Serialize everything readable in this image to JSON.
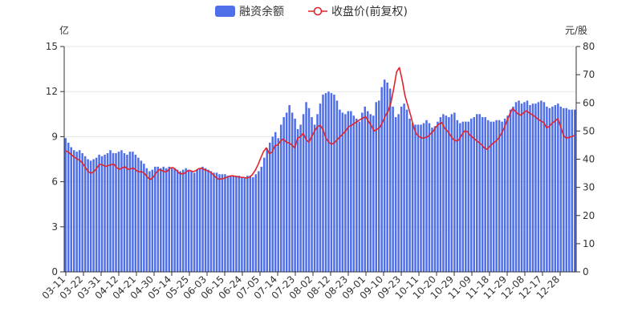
{
  "chart_data": {
    "type": "bar+line",
    "legend": {
      "placement": "top-center",
      "items": [
        {
          "label": "融资余额",
          "kind": "bar",
          "color": "#4f6fe8"
        },
        {
          "label": "收盘价(前复权)",
          "kind": "line",
          "color": "#e0242b"
        }
      ]
    },
    "left_axis": {
      "unit_label": "亿",
      "range": [
        0,
        15
      ],
      "ticks": [
        "0",
        "3",
        "6",
        "9",
        "12",
        "15"
      ]
    },
    "right_axis": {
      "unit_label": "元/股",
      "range": [
        0,
        80
      ],
      "ticks": [
        "0",
        "10",
        "20",
        "30",
        "40",
        "50",
        "60",
        "70",
        "80"
      ]
    },
    "x_tick_labels": [
      "03-11",
      "03-22",
      "03-31",
      "04-12",
      "04-21",
      "04-30",
      "05-14",
      "05-25",
      "06-03",
      "06-15",
      "06-24",
      "07-05",
      "07-14",
      "07-23",
      "08-02",
      "08-12",
      "08-23",
      "09-01",
      "09-10",
      "09-23",
      "10-11",
      "10-20",
      "10-29",
      "11-09",
      "11-18",
      "11-29",
      "12-08",
      "12-17",
      "12-28"
    ],
    "series": [
      {
        "name": "融资余额",
        "axis": "left",
        "values": [
          8.9,
          8.6,
          8.3,
          8.1,
          8.0,
          8.1,
          7.9,
          7.7,
          7.5,
          7.4,
          7.5,
          7.6,
          7.8,
          7.7,
          7.8,
          7.9,
          8.1,
          7.9,
          7.9,
          8.0,
          8.1,
          7.9,
          7.8,
          8.0,
          8.0,
          7.8,
          7.6,
          7.4,
          7.2,
          6.9,
          6.7,
          6.8,
          7.0,
          7.0,
          6.9,
          7.0,
          6.9,
          7.0,
          6.9,
          6.9,
          6.8,
          6.7,
          6.8,
          6.9,
          6.8,
          6.7,
          6.6,
          6.8,
          6.9,
          7.0,
          6.9,
          6.8,
          6.7,
          6.6,
          6.6,
          6.5,
          6.5,
          6.5,
          6.4,
          6.4,
          6.4,
          6.4,
          6.4,
          6.3,
          6.3,
          6.4,
          6.4,
          6.3,
          6.5,
          6.7,
          7.0,
          7.6,
          8.2,
          8.6,
          9.0,
          9.3,
          8.9,
          9.8,
          10.3,
          10.6,
          11.1,
          10.6,
          10.2,
          9.5,
          9.8,
          10.5,
          11.3,
          10.9,
          10.3,
          9.8,
          10.5,
          11.2,
          11.8,
          11.9,
          12.0,
          11.9,
          11.8,
          11.4,
          10.8,
          10.6,
          10.5,
          10.7,
          10.7,
          10.4,
          10.2,
          10.0,
          10.6,
          11.0,
          10.7,
          10.5,
          10.4,
          11.3,
          11.4,
          12.3,
          12.8,
          12.6,
          12.2,
          11.0,
          10.3,
          10.5,
          11.0,
          11.2,
          10.8,
          10.2,
          9.9,
          9.8,
          9.8,
          9.8,
          9.9,
          10.1,
          9.9,
          9.6,
          9.7,
          10.0,
          10.3,
          10.5,
          10.4,
          10.3,
          10.5,
          10.6,
          10.1,
          9.9,
          10.0,
          10.0,
          10.0,
          10.2,
          10.3,
          10.5,
          10.5,
          10.3,
          10.3,
          10.1,
          10.0,
          10.0,
          10.1,
          10.1,
          10.0,
          10.2,
          10.4,
          10.8,
          11.0,
          11.3,
          11.4,
          11.2,
          11.3,
          11.4,
          11.1,
          11.2,
          11.2,
          11.3,
          11.4,
          11.3,
          11.0,
          10.9,
          11.0,
          11.1,
          11.2,
          11.0,
          10.9,
          10.9,
          10.8,
          10.8,
          10.8
        ]
      },
      {
        "name": "收盘价(前复权)",
        "axis": "right",
        "values": [
          43.0,
          42.5,
          41.6,
          40.8,
          40.1,
          39.6,
          38.6,
          37.0,
          35.6,
          35.0,
          35.6,
          36.8,
          38.2,
          38.0,
          37.4,
          37.7,
          38.0,
          38.3,
          37.0,
          36.4,
          36.9,
          37.3,
          36.4,
          36.6,
          36.8,
          36.0,
          35.5,
          35.6,
          34.8,
          33.5,
          32.8,
          33.6,
          35.2,
          36.3,
          36.0,
          35.5,
          35.8,
          36.9,
          37.0,
          36.2,
          35.1,
          34.8,
          35.0,
          35.8,
          36.0,
          35.6,
          35.9,
          36.6,
          36.8,
          36.3,
          36.0,
          35.5,
          34.7,
          33.6,
          32.9,
          33.0,
          33.2,
          33.6,
          34.0,
          34.1,
          33.9,
          33.7,
          33.6,
          33.5,
          33.3,
          33.6,
          34.5,
          36.0,
          38.0,
          40.5,
          42.8,
          44.0,
          42.0,
          42.5,
          44.8,
          45.0,
          46.5,
          47.2,
          46.0,
          45.8,
          45.0,
          44.0,
          47.5,
          48.0,
          49.2,
          47.0,
          46.0,
          48.0,
          50.0,
          51.5,
          52.0,
          50.5,
          47.6,
          46.0,
          45.3,
          45.8,
          46.9,
          48.0,
          49.0,
          50.0,
          51.5,
          52.0,
          52.7,
          53.3,
          54.0,
          54.5,
          55.2,
          53.5,
          52.1,
          50.0,
          50.6,
          51.2,
          53.0,
          55.4,
          57.0,
          60.0,
          65.0,
          71.0,
          72.5,
          68.0,
          62.5,
          59.0,
          55.5,
          51.5,
          49.0,
          48.0,
          47.5,
          47.6,
          48.0,
          49.0,
          50.0,
          51.5,
          52.5,
          53.0,
          51.0,
          50.0,
          48.5,
          47.1,
          46.5,
          46.8,
          48.5,
          50.0,
          49.8,
          48.5,
          47.7,
          46.8,
          46.0,
          45.2,
          44.0,
          43.5,
          44.6,
          45.6,
          46.3,
          47.4,
          49.0,
          51.0,
          53.5,
          56.0,
          58.0,
          57.0,
          56.0,
          55.6,
          56.6,
          57.2,
          56.3,
          55.8,
          55.0,
          54.2,
          53.6,
          53.0,
          51.2,
          51.6,
          52.8,
          53.5,
          54.4,
          51.6,
          48.5,
          47.4,
          47.8,
          48.0,
          48.5
        ]
      }
    ]
  }
}
